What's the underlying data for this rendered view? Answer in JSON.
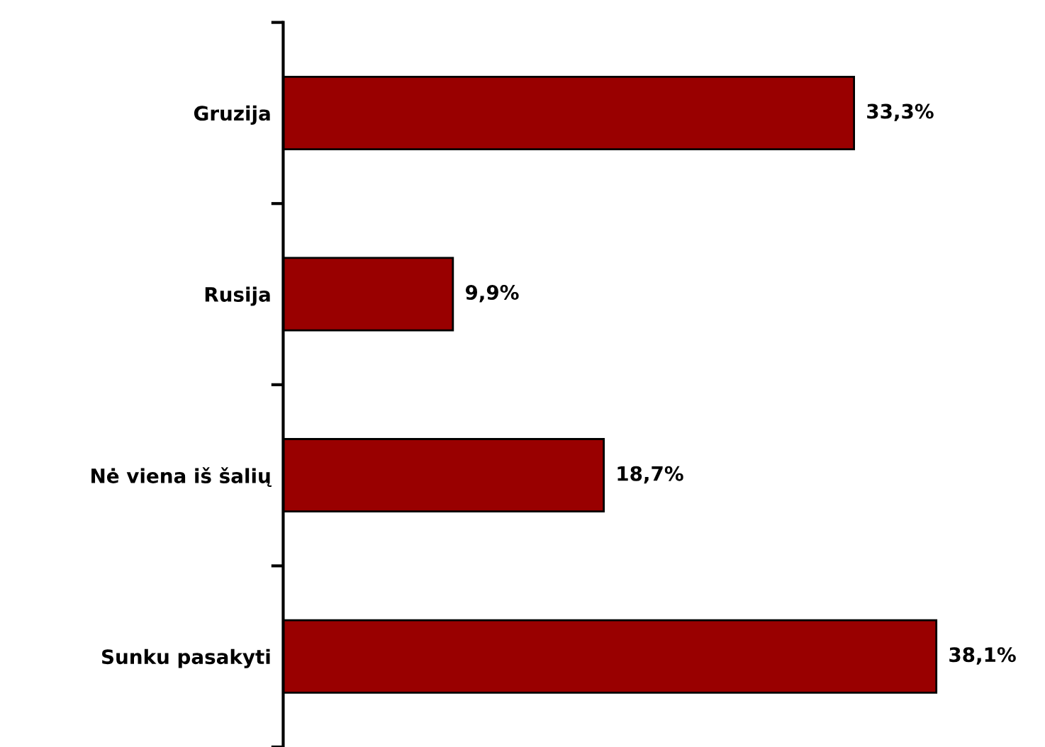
{
  "chart_data": {
    "type": "bar",
    "orientation": "horizontal",
    "categories": [
      "Gruzija",
      "Rusija",
      "Nė viena iš šalių",
      "Sunku pasakyti"
    ],
    "values": [
      33.3,
      9.9,
      18.7,
      38.1
    ],
    "value_labels": [
      "33,3%",
      "9,9%",
      "18,7%",
      "38,1%"
    ],
    "color": "#990000",
    "grid": false,
    "legend": false
  }
}
